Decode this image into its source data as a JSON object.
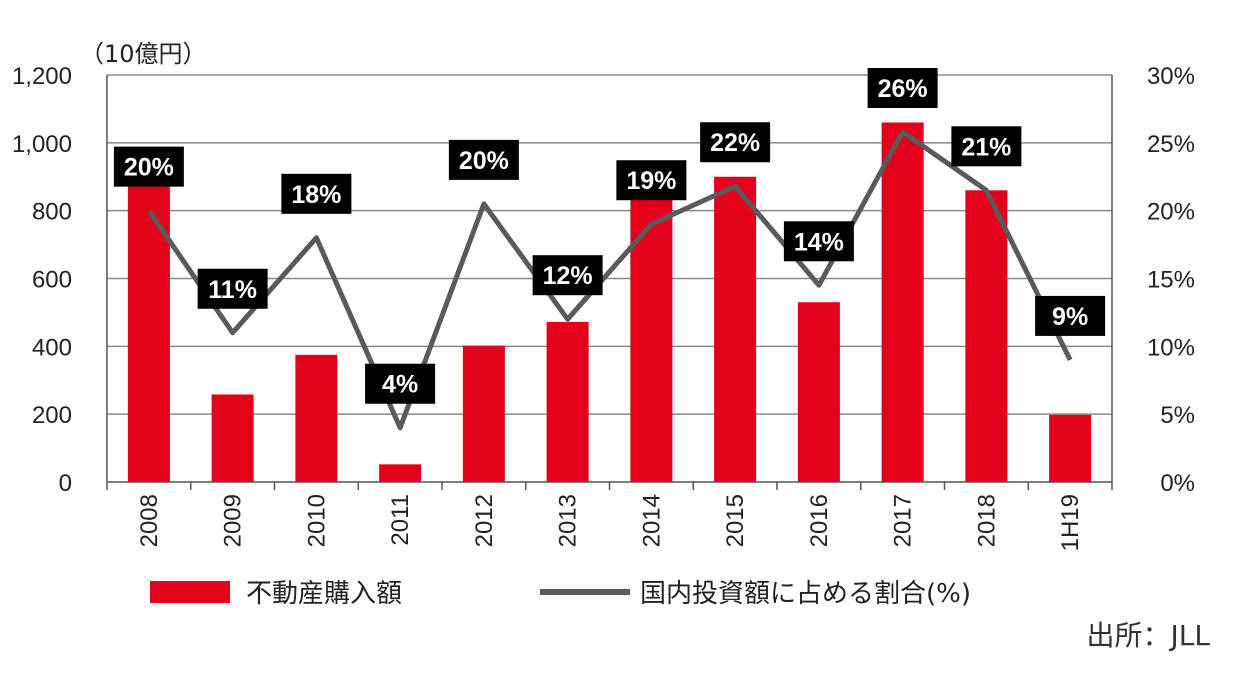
{
  "chart_data": {
    "type": "bar",
    "categories": [
      "2008",
      "2009",
      "2010",
      "2011",
      "2012",
      "2013",
      "2014",
      "2015",
      "2016",
      "2017",
      "2018",
      "1H19"
    ],
    "y_left_unit": "（10億円）",
    "ylim_left": [
      0,
      1200
    ],
    "yticks_left": [
      "0",
      "200",
      "400",
      "600",
      "800",
      "1,000",
      "1,200"
    ],
    "ylim_right": [
      0,
      30
    ],
    "yticks_right": [
      "0%",
      "5%",
      "10%",
      "15%",
      "20%",
      "25%",
      "30%"
    ],
    "grid": true,
    "series": [
      {
        "name": "不動産購入額",
        "type": "bar",
        "axis": "left",
        "color": "#e2001a",
        "values": [
          880,
          258,
          375,
          52,
          402,
          472,
          860,
          900,
          530,
          1060,
          860,
          198
        ]
      },
      {
        "name": "国内投資額に占める割合(%)",
        "type": "line",
        "axis": "right",
        "color": "#5a5a5a",
        "values": [
          20,
          11,
          18,
          4,
          20.5,
          12,
          19,
          21.8,
          14.5,
          25.8,
          21.5,
          9
        ],
        "data_labels": [
          "20%",
          "11%",
          "18%",
          "4%",
          "20%",
          "12%",
          "19%",
          "22%",
          "14%",
          "26%",
          "21%",
          "9%"
        ]
      }
    ],
    "legend_position": "bottom",
    "source": "出所：JLL"
  }
}
